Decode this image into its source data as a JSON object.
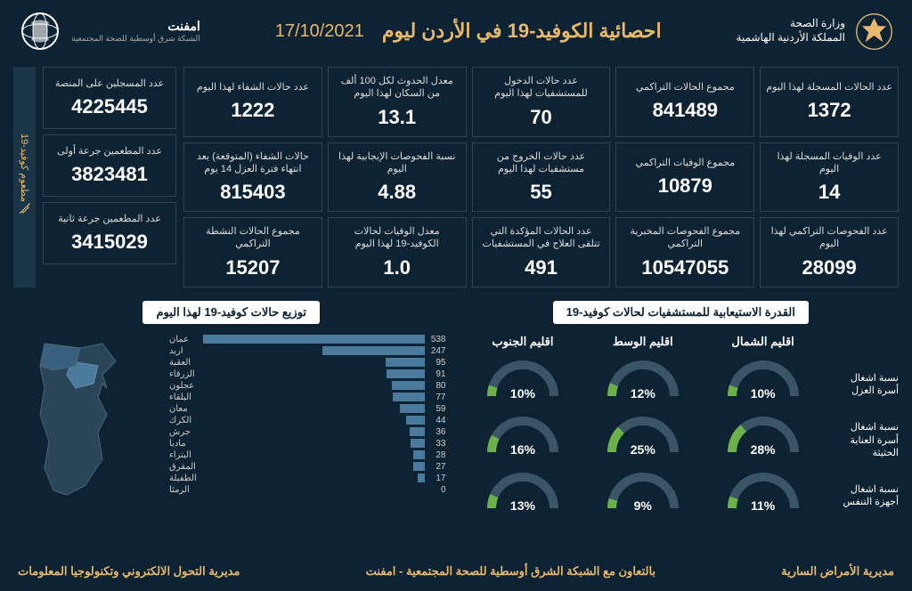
{
  "header": {
    "ministry_line1": "وزارة الصحة",
    "ministry_line2": "المملكة الأردنية الهاشمية",
    "main_title": "احصائية الكوفيد-19 في الأردن ليوم",
    "date": "17/10/2021",
    "logo_name": "امفنت",
    "logo_sub": "الشبكة شرق أوسطية للصحة المجتمعية"
  },
  "colors": {
    "bg": "#0d2333",
    "accent": "#e8b86d",
    "border": "#2a4558",
    "bar": "#4a7a9c",
    "gauge_fill": "#6bb04a",
    "gauge_track": "#3a5568"
  },
  "stats": [
    {
      "label": "عدد الحالات المسجلة لهذا اليوم",
      "value": "1372"
    },
    {
      "label": "مجموع الحالات التراكمي",
      "value": "841489"
    },
    {
      "label": "عدد حالات الدخول للمستشفيات لهذا اليوم",
      "value": "70"
    },
    {
      "label": "معدل الحدوث لكل 100 ألف من السكان لهذا اليوم",
      "value": "13.1"
    },
    {
      "label": "عدد حالات الشفاء لهذا اليوم",
      "value": "1222"
    },
    {
      "label": "عدد الوفيات المسجلة لهذا اليوم",
      "value": "14"
    },
    {
      "label": "مجموع الوفيات التراكمي",
      "value": "10879"
    },
    {
      "label": "عدد حالات الخروج من مستشفيات لهذا اليوم",
      "value": "55"
    },
    {
      "label": "نسبة الفحوصات الإيجابية لهذا اليوم",
      "value": "4.88"
    },
    {
      "label": "حالات الشفاء (المتوقعة) بعد انتهاء فترة العزل 14 يوم",
      "value": "815403"
    },
    {
      "label": "عدد الفحوصات التراكمي لهذا اليوم",
      "value": "28099"
    },
    {
      "label": "مجموع الفحوصات المخبرية التراكمي",
      "value": "10547055"
    },
    {
      "label": "عدد الحالات المؤكدة التي تتلقى العلاج في المستشفيات",
      "value": "491"
    },
    {
      "label": "معدل الوفيات لحالات الكوفيد-19 لهذا اليوم",
      "value": "1.0"
    },
    {
      "label": "مجموع الحالات النشطة التراكمي",
      "value": "15207"
    }
  ],
  "vax": {
    "side_label": "مطعوم كوفيد-19",
    "cards": [
      {
        "label": "عدد المسجلين على المنصة",
        "value": "4225445"
      },
      {
        "label": "عدد المطعمين جرعة أولى",
        "value": "3823481"
      },
      {
        "label": "عدد المطعمين جرعة ثانية",
        "value": "3415029"
      }
    ]
  },
  "capacity": {
    "title": "القدرة الاستيعابية للمستشفيات لحالات كوفيد-19",
    "regions": [
      "اقليم الشمال",
      "اقليم الوسط",
      "اقليم الجنوب"
    ],
    "rows": [
      {
        "label": "نسبة اشغال أسرة العزل",
        "values": [
          10,
          12,
          10
        ]
      },
      {
        "label": "نسبة اشغال أسرة العناية الحثيثة",
        "values": [
          28,
          25,
          16
        ]
      },
      {
        "label": "نسبة اشغال أجهزة التنفس",
        "values": [
          11,
          9,
          13
        ]
      }
    ]
  },
  "distribution": {
    "title": "توزيع حالات كوفيد-19 لهذا اليوم",
    "max": 538,
    "bars": [
      {
        "label": "عمان",
        "value": 538
      },
      {
        "label": "اربد",
        "value": 247
      },
      {
        "label": "العقبة",
        "value": 95
      },
      {
        "label": "الزرقاء",
        "value": 91
      },
      {
        "label": "عجلون",
        "value": 80
      },
      {
        "label": "البلقاء",
        "value": 77
      },
      {
        "label": "معان",
        "value": 59
      },
      {
        "label": "الكرك",
        "value": 44
      },
      {
        "label": "جرش",
        "value": 36
      },
      {
        "label": "مادبا",
        "value": 33
      },
      {
        "label": "البتراء",
        "value": 28
      },
      {
        "label": "المفرق",
        "value": 27
      },
      {
        "label": "الطفيلة",
        "value": 17
      },
      {
        "label": "الرمثا",
        "value": 0
      }
    ]
  },
  "footer": {
    "right": "مديرية الأمراض السارية",
    "center": "بالتعاون مع الشبكة الشرق أوسطية للصحة المجتمعية - امفنت",
    "left": "مديرية التحول الالكتروني وتكنولوجيا المعلومات"
  }
}
